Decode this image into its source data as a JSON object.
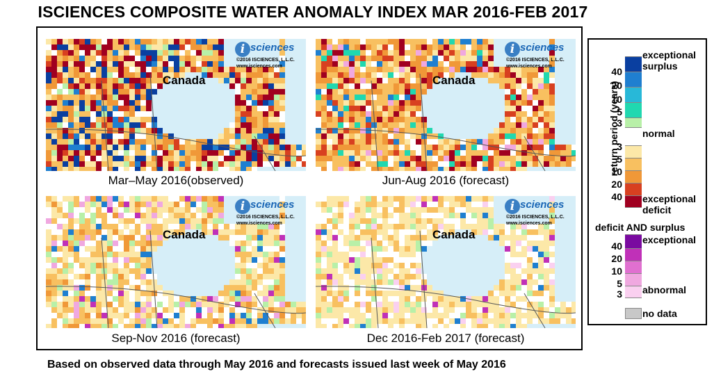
{
  "title": "ISCIENCES COMPOSITE WATER ANOMALY INDEX MAR 2016-FEB 2017",
  "footer": "Based on observed data through May 2016 and forecasts issued last week of May 2016",
  "panels": [
    {
      "caption": "Mar–May 2016(observed)",
      "region": "Canada"
    },
    {
      "caption": "Jun-Aug 2016 (forecast)",
      "region": "Canada"
    },
    {
      "caption": "Sep-Nov 2016 (forecast)",
      "region": "Canada"
    },
    {
      "caption": "Dec 2016-Feb 2017 (forecast)",
      "region": "Canada"
    }
  ],
  "logo": {
    "brand": "sciences",
    "mark": "i",
    "copyright": "©2016 ISCIENCES, L.L.C.",
    "url": "www.isciences.com"
  },
  "legend": {
    "axis_label": "return period (years)",
    "surplus_label": "exceptional surplus",
    "normal_label": "normal",
    "deficit_label": "exceptional deficit",
    "both_header": "deficit AND surplus",
    "both_exceptional_label": "exceptional",
    "both_abnormal_label": "abnormal",
    "nodata_label": "no data",
    "surplus_ticks": [
      "40",
      "20",
      "10",
      "5",
      "3"
    ],
    "deficit_ticks": [
      "3",
      "5",
      "10",
      "20",
      "40"
    ],
    "both_ticks": [
      "40",
      "20",
      "10",
      "5",
      "3"
    ],
    "colors": {
      "surplus": [
        "#0a3fa0",
        "#1f7fd0",
        "#28b8d8",
        "#20d8b0",
        "#b8f0a8"
      ],
      "normal": "#ffffff",
      "deficit": [
        "#fce8a8",
        "#f8c060",
        "#f09838",
        "#d84020",
        "#a00020"
      ],
      "both": [
        "#7a0aa0",
        "#c030b8",
        "#e070d0",
        "#f0a8e0",
        "#fad0f0"
      ],
      "nodata": "#c8c8c8"
    }
  }
}
